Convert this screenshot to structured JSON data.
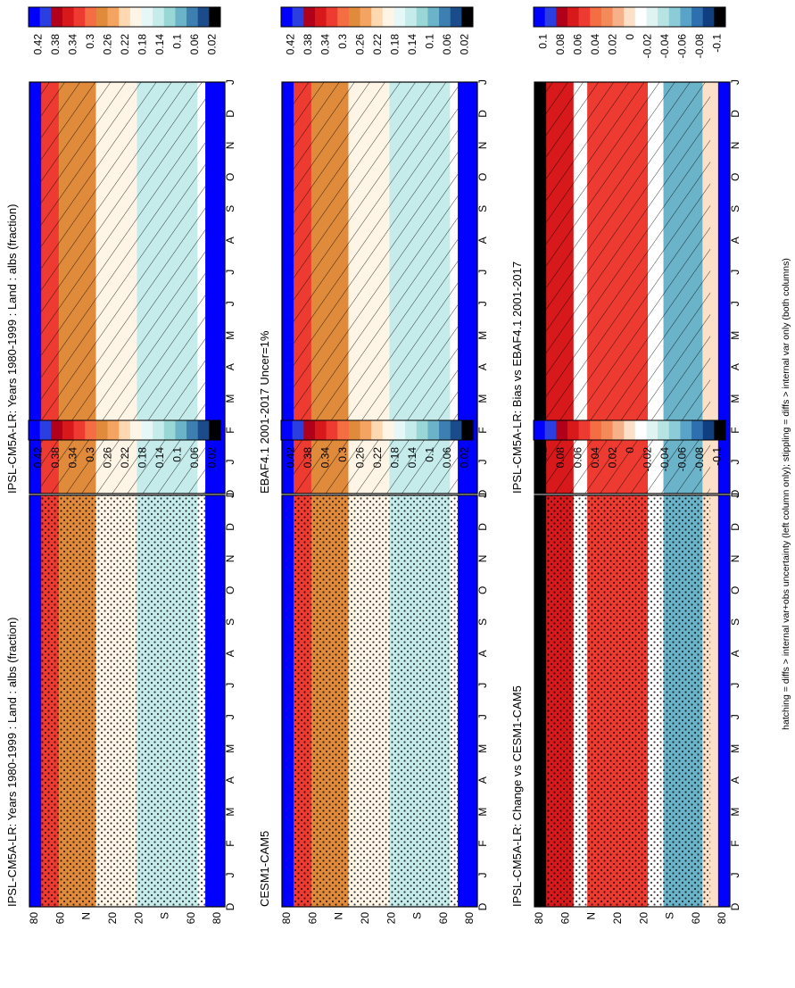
{
  "figure": {
    "footnote": "hatching = diffs > internal var+obs uncertainty (left column only); stippling = diffs > internal var only (both columns)"
  },
  "colors": {
    "abs_scale": [
      "#0000ff",
      "#2b3fe0",
      "#b0001a",
      "#d7191c",
      "#ee3b32",
      "#f46d43",
      "#e08a3c",
      "#f4a460",
      "#fdd8b0",
      "#fff5e6",
      "#e6f7f7",
      "#c5ebeb",
      "#99d6d6",
      "#6bb3c9",
      "#3d7fb0",
      "#1a4c8c",
      "#000000"
    ],
    "diff_scale": [
      "#0000ff",
      "#2b3fe0",
      "#b0001a",
      "#d7191c",
      "#ee3b32",
      "#f46d43",
      "#f48a5a",
      "#f6b08a",
      "#fde0c8",
      "#ffffff",
      "#e0f3f3",
      "#b8e3e3",
      "#8ccbd8",
      "#5aa3c8",
      "#2e6fb0",
      "#0f3f80",
      "#000000"
    ]
  },
  "chart_data": [
    {
      "type": "heatmap",
      "panel": "top-left",
      "title": "IPSL-CM5A-LR: Years 1980-1999 : Land : albs (fraction)",
      "x_ticks": [
        "D",
        "J",
        "F",
        "M",
        "A",
        "M",
        "J",
        "J",
        "A",
        "S",
        "O",
        "N",
        "D",
        "J"
      ],
      "y_ticks": [
        "80",
        "60",
        "N",
        "20",
        "20",
        "S",
        "60",
        "80"
      ],
      "colorbar_ticks": [
        "0.42",
        "0.38",
        "0.34",
        "0.3",
        "0.26",
        "0.22",
        "0.18",
        "0.14",
        "0.1",
        "0.06",
        "0.02"
      ],
      "overlay": "hatching"
    },
    {
      "type": "heatmap",
      "panel": "top-right",
      "title": "IPSL-CM5A-LR: Years 1980-1999 : Land : albs (fraction)",
      "x_ticks": [
        "D",
        "J",
        "F",
        "M",
        "A",
        "M",
        "J",
        "J",
        "A",
        "S",
        "O",
        "N",
        "D",
        "J"
      ],
      "y_ticks": [
        "80",
        "60",
        "N",
        "20",
        "20",
        "S",
        "60",
        "80"
      ],
      "colorbar_ticks": [
        "0.42",
        "0.38",
        "0.34",
        "0.3",
        "0.26",
        "0.22",
        "0.18",
        "0.14",
        "0.1",
        "0.06",
        "0.02"
      ],
      "overlay": "stippling"
    },
    {
      "type": "heatmap",
      "panel": "middle-left",
      "title": "EBAF4.1 2001-2017 Uncer=1%",
      "x_ticks": [
        "D",
        "J",
        "F",
        "M",
        "A",
        "M",
        "J",
        "J",
        "A",
        "S",
        "O",
        "N",
        "D",
        "J"
      ],
      "y_ticks": [
        "80",
        "60",
        "N",
        "20",
        "20",
        "S",
        "60",
        "80"
      ],
      "colorbar_ticks": [
        "0.42",
        "0.38",
        "0.34",
        "0.3",
        "0.26",
        "0.22",
        "0.18",
        "0.14",
        "0.1",
        "0.06",
        "0.02"
      ],
      "overlay": "hatching"
    },
    {
      "type": "heatmap",
      "panel": "middle-right",
      "title": "CESM1-CAM5",
      "x_ticks": [
        "D",
        "J",
        "F",
        "M",
        "A",
        "M",
        "J",
        "J",
        "A",
        "S",
        "O",
        "N",
        "D",
        "J"
      ],
      "y_ticks": [
        "80",
        "60",
        "N",
        "20",
        "20",
        "S",
        "60",
        "80"
      ],
      "colorbar_ticks": [
        "0.42",
        "0.38",
        "0.34",
        "0.3",
        "0.26",
        "0.22",
        "0.18",
        "0.14",
        "0.1",
        "0.06",
        "0.02"
      ],
      "overlay": "stippling"
    },
    {
      "type": "heatmap",
      "panel": "bottom-left",
      "title": "IPSL-CM5A-LR: Bias vs EBAF4.1 2001-2017",
      "x_ticks": [
        "D",
        "J",
        "F",
        "M",
        "A",
        "M",
        "J",
        "J",
        "A",
        "S",
        "O",
        "N",
        "D",
        "J"
      ],
      "y_ticks": [
        "80",
        "60",
        "N",
        "20",
        "20",
        "S",
        "60",
        "80"
      ],
      "colorbar_ticks": [
        "0.1",
        "0.08",
        "0.06",
        "0.04",
        "0.02",
        "0",
        "-0.02",
        "-0.04",
        "-0.06",
        "-0.08",
        "-0.1"
      ],
      "overlay": "hatching"
    },
    {
      "type": "heatmap",
      "panel": "bottom-right",
      "title": "IPSL-CM5A-LR: Change vs CESM1-CAM5",
      "x_ticks": [
        "D",
        "J",
        "F",
        "M",
        "A",
        "M",
        "J",
        "J",
        "A",
        "S",
        "O",
        "N",
        "D",
        "J"
      ],
      "y_ticks": [
        "80",
        "60",
        "N",
        "20",
        "20",
        "S",
        "60",
        "80"
      ],
      "colorbar_ticks": [
        "0.1",
        "0.08",
        "0.06",
        "0.04",
        "0.02",
        "0",
        "-0.02",
        "-0.04",
        "-0.06",
        "-0.08",
        "-0.1"
      ],
      "overlay": "stippling"
    }
  ]
}
